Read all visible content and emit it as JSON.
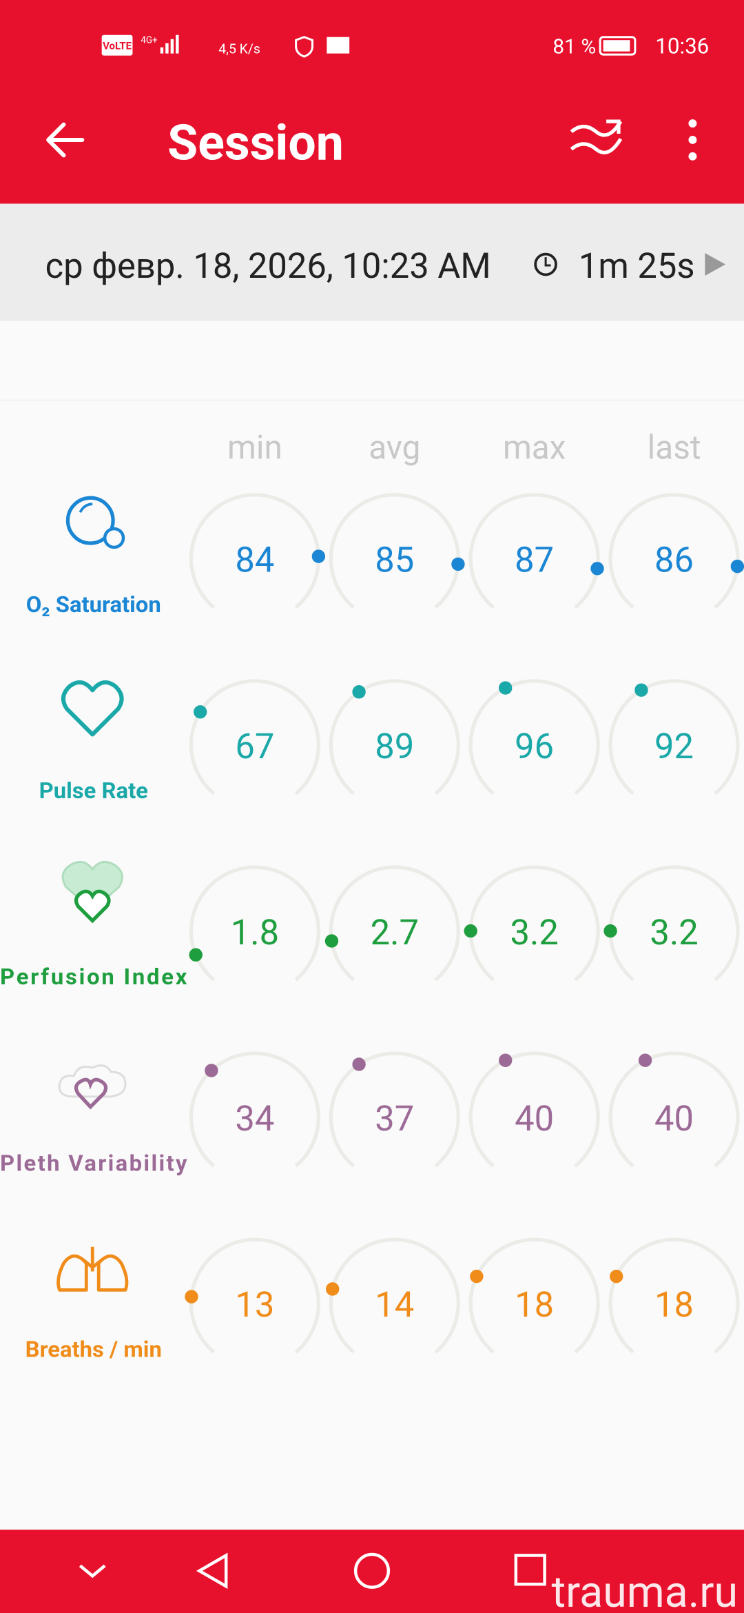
{
  "status_bar": {
    "volte": "VoLTE",
    "network": "4G+",
    "speed": "4,5 K/s",
    "battery": "81 %",
    "time": "10:36"
  },
  "app_bar": {
    "title": "Session"
  },
  "session": {
    "date": "ср февр. 18, 2026, 10:23 AM",
    "duration": "1m 25s"
  },
  "columns": [
    "min",
    "avg",
    "max",
    "last"
  ],
  "rows": [
    {
      "label": "O₂ Saturation",
      "color": "#1a86d4",
      "values": [
        84,
        85,
        87,
        86
      ]
    },
    {
      "label": "Pulse Rate",
      "color": "#1aa8a8",
      "values": [
        67,
        89,
        96,
        92
      ]
    },
    {
      "label": "Perfusion Index",
      "color": "#1e9e3e",
      "values": [
        1.8,
        2.7,
        3.2,
        3.2
      ]
    },
    {
      "label": "Pleth Variability",
      "color": "#9c6a96",
      "values": [
        34,
        37,
        40,
        40
      ]
    },
    {
      "label": "Breaths / min",
      "color": "#f08c1a",
      "values": [
        13,
        14,
        18,
        18
      ]
    }
  ],
  "watermark": "trauma.ru"
}
